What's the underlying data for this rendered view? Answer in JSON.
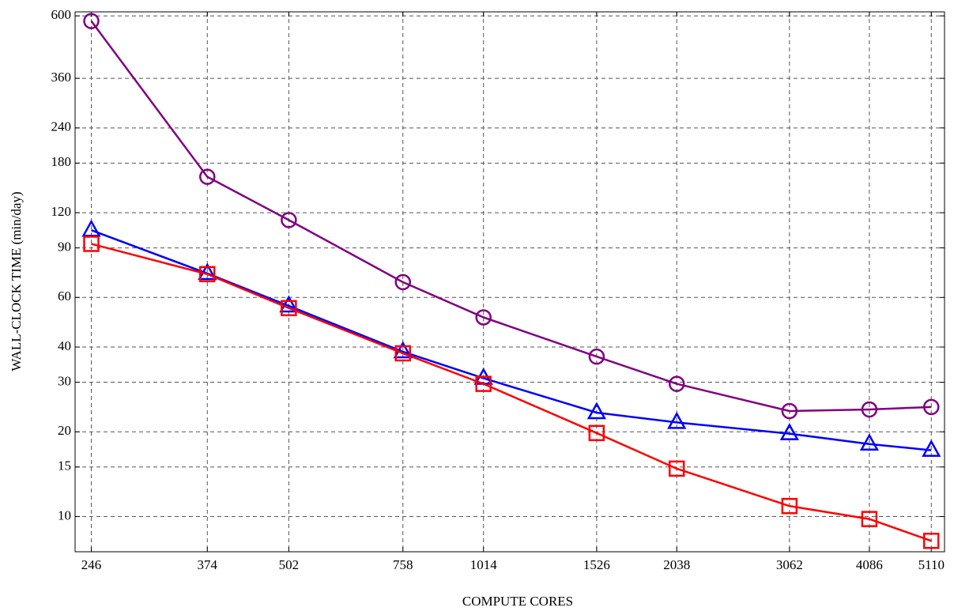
{
  "chart_data": {
    "type": "line",
    "x_label": "COMPUTE CORES",
    "y_label": "WALL-CLOCK TIME (min/day)",
    "x": [
      246,
      374,
      502,
      758,
      1014,
      1526,
      2038,
      3062,
      4086,
      5110
    ],
    "series": [
      {
        "color": "#800080",
        "marker": "circle",
        "values": [
          575,
          161,
          113,
          68,
          51,
          37,
          29.6,
          23.7,
          24,
          24.5
        ]
      },
      {
        "color": "#0000ff",
        "marker": "triangle",
        "values": [
          104,
          73,
          56,
          38.5,
          31,
          23.4,
          21.6,
          19.7,
          18.1,
          17.2
        ]
      },
      {
        "color": "#ff0000",
        "marker": "square",
        "values": [
          93,
          72.6,
          55,
          38,
          29.6,
          19.8,
          14.8,
          10.9,
          9.8,
          8.2
        ]
      }
    ],
    "xscale": "log",
    "yscale": "log",
    "xlim": [
      232,
      5360
    ],
    "ylim": [
      7.5,
      620
    ],
    "xticks": [
      246,
      374,
      502,
      758,
      1014,
      1526,
      2038,
      3062,
      4086,
      5110
    ],
    "yticks": [
      10,
      15,
      20,
      30,
      40,
      60,
      90,
      120,
      180,
      240,
      360,
      600
    ],
    "grid": true
  }
}
